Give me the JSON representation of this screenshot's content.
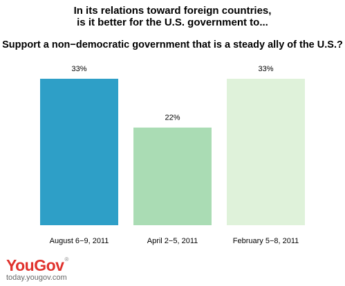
{
  "title_line1": "In its relations toward foreign countries,",
  "title_line2": "is it better for the U.S. government to...",
  "subtitle": "Support a non−democratic government that is a steady ally of the U.S.?",
  "chart_data": {
    "type": "bar",
    "categories": [
      "August 6−9, 2011",
      "April 2−5, 2011",
      "February 5−8, 2011"
    ],
    "values": [
      33,
      22,
      33
    ],
    "value_labels": [
      "33%",
      "22%",
      "33%"
    ],
    "colors": [
      "#2e9fc7",
      "#aadcb4",
      "#dff2da"
    ],
    "ylim": [
      0,
      33
    ],
    "grid": false
  },
  "logo": {
    "you": "You",
    "gov": "Gov",
    "mark": "®"
  },
  "website": "today.yougov.com"
}
